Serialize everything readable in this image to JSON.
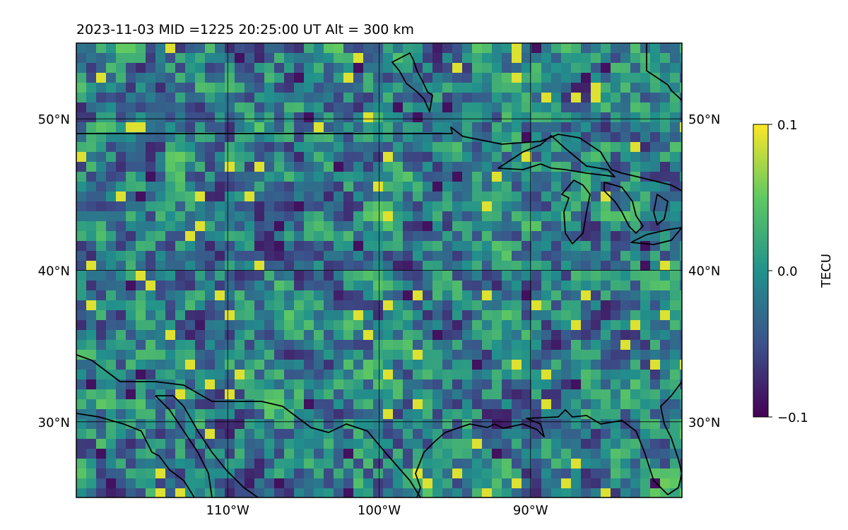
{
  "title": "2023-11-03  MID =1225    20:25:00  UT  Alt = 300 km",
  "map": {
    "lon_range": [
      -120,
      -80
    ],
    "lat_range": [
      25,
      55
    ],
    "lat_ticks": [
      {
        "value": 30,
        "label": "30°N"
      },
      {
        "value": 40,
        "label": "40°N"
      },
      {
        "value": 50,
        "label": "50°N"
      }
    ],
    "lon_ticks": [
      {
        "value": -110,
        "label": "110°W"
      },
      {
        "value": -100,
        "label": "100°W"
      },
      {
        "value": -90,
        "label": "90°W"
      }
    ],
    "gridlines": true,
    "coastlines": true,
    "colormap": "viridis"
  },
  "colorbar": {
    "label": "TECU",
    "min": -0.1,
    "max": 0.1,
    "ticks": [
      {
        "value": 0.1,
        "label": "0.1"
      },
      {
        "value": 0.0,
        "label": "0.0"
      },
      {
        "value": -0.1,
        "label": "−0.1"
      }
    ],
    "colors": [
      "#440154",
      "#3b528b",
      "#21918c",
      "#5ec962",
      "#fde725"
    ]
  }
}
